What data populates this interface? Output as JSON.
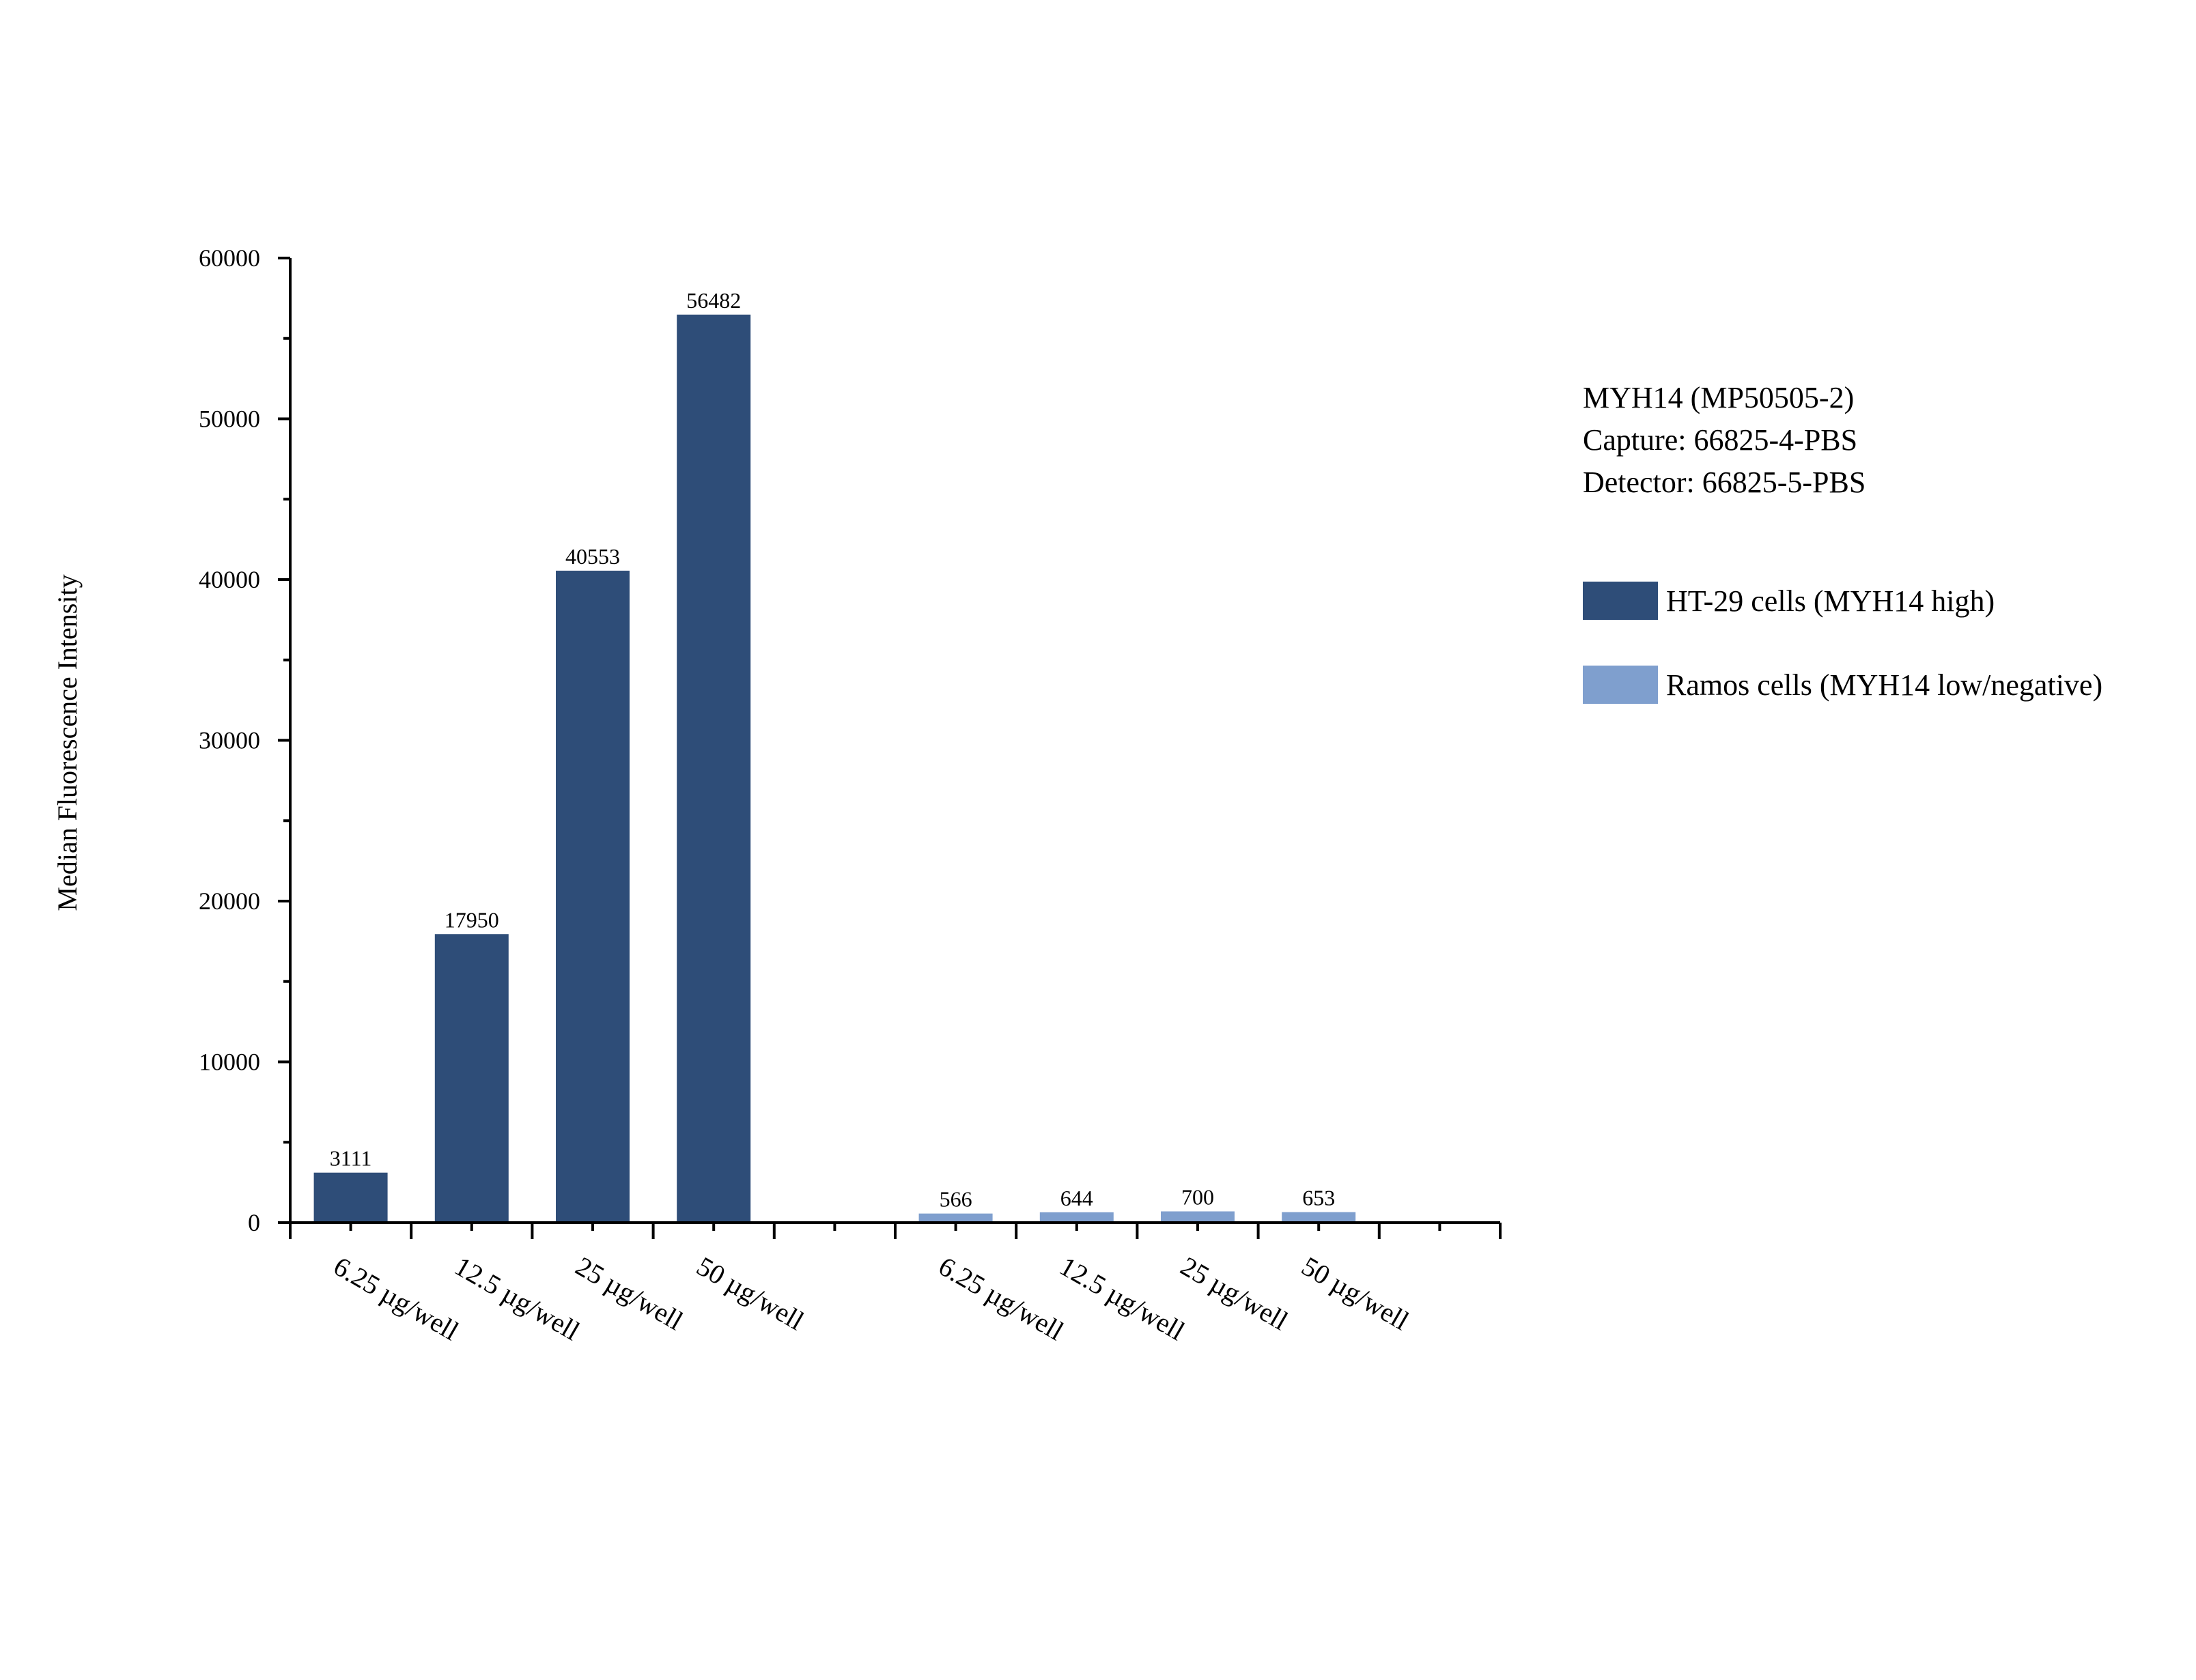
{
  "chart_data": {
    "type": "bar",
    "title": "",
    "xlabel": "",
    "ylabel": "Median Fluorescence Intensity",
    "ylim": [
      0,
      60000
    ],
    "yticks": [
      0,
      10000,
      20000,
      30000,
      40000,
      50000,
      60000
    ],
    "grid": false,
    "legend_position": "right",
    "annotation_lines": [
      "MYH14 (MP50505-2)",
      "Capture: 66825-4-PBS",
      "Detector: 66825-5-PBS"
    ],
    "groups": [
      {
        "series": "HT-29 cells (MYH14 high)",
        "color": "#2e4d78",
        "categories": [
          "6.25 µg/well",
          "12.5 µg/well",
          "25 µg/well",
          "50 µg/well"
        ],
        "values": [
          3111,
          17950,
          40553,
          56482
        ],
        "labels": [
          "3111",
          "17950",
          "40553",
          "56482"
        ]
      },
      {
        "series": "Ramos cells (MYH14 low/negative)",
        "color": "#7f9fce",
        "categories": [
          "6.25 µg/well",
          "12.5 µg/well",
          "25 µg/well",
          "50 µg/well"
        ],
        "values": [
          566,
          644,
          700,
          653
        ],
        "labels": [
          "566",
          "644",
          "700",
          "653"
        ]
      }
    ],
    "legend": [
      {
        "label": "HT-29 cells (MYH14 high)",
        "color": "#2e4d78"
      },
      {
        "label": "Ramos cells (MYH14 low/negative)",
        "color": "#7f9fce"
      }
    ]
  }
}
